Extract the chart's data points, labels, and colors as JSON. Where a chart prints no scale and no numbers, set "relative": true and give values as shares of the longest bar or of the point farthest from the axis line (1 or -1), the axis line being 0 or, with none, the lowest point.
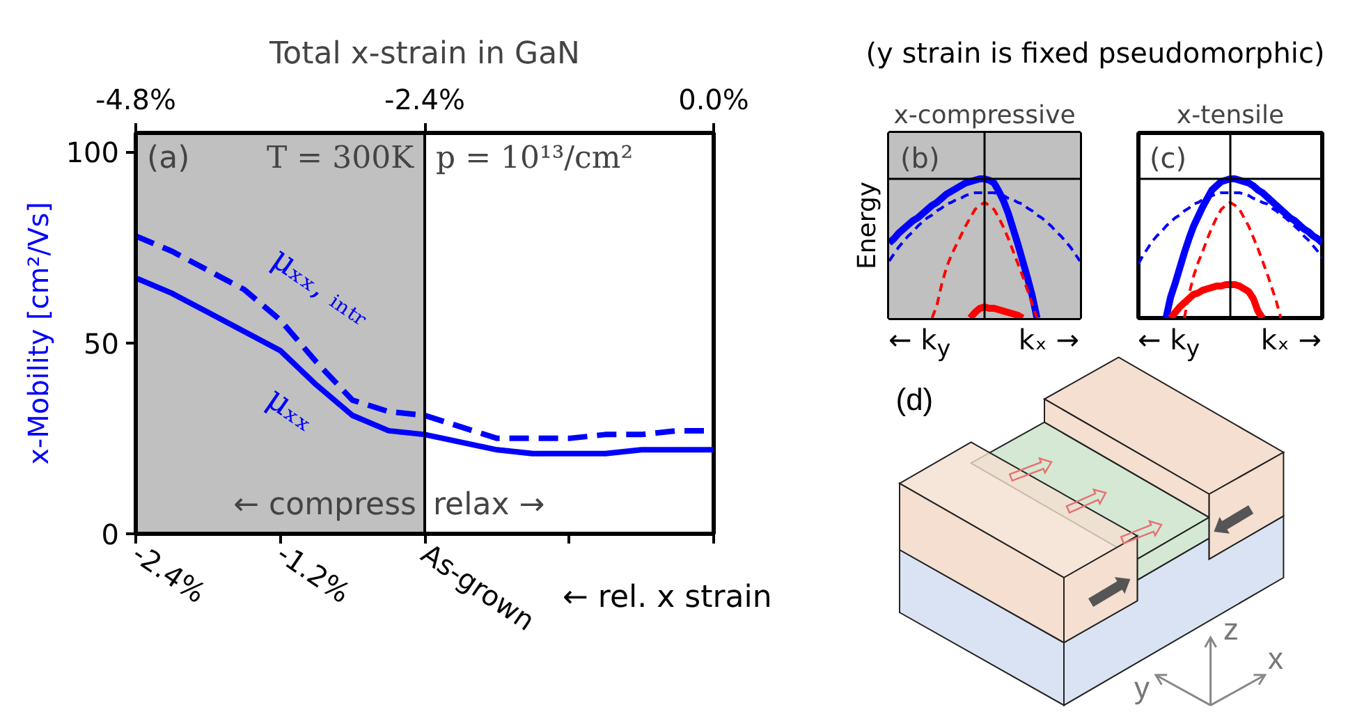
{
  "chart_data": [
    {
      "type": "line",
      "x2label": "Total x-strain in GaN",
      "xlabel": "← rel. x strain",
      "ylabel": "x-Mobility [cm²/Vs]",
      "x": [
        -2.4,
        -2.1,
        -1.8,
        -1.5,
        -1.2,
        -0.9,
        -0.6,
        -0.3,
        0,
        0.3,
        0.6,
        0.9,
        1.2,
        1.5,
        1.8,
        2.1,
        2.4
      ],
      "series": [
        {
          "name": "μₓₓ",
          "color": "#0000ff",
          "line_style": "solid",
          "values": [
            67,
            63,
            58,
            53,
            48,
            39,
            31,
            27,
            26,
            24,
            22,
            21,
            21,
            21,
            22,
            22,
            22
          ]
        },
        {
          "name": "μₓₓ, ᵢₙₜᵣ",
          "color": "#0000ff",
          "line_style": "dashed",
          "values": [
            78,
            74,
            69,
            64,
            56,
            45,
            35,
            32,
            31,
            28,
            25,
            25,
            25,
            26,
            26,
            27,
            27
          ]
        }
      ],
      "xlim": [
        -2.4,
        2.4
      ],
      "xticks": [
        {
          "value": -2.4,
          "label": "-2.4%"
        },
        {
          "value": -1.2,
          "label": "-1.2%"
        },
        {
          "value": 0,
          "label": "As-grown"
        },
        {
          "value": 1.2,
          "label": null
        },
        {
          "value": 2.4,
          "label": null
        }
      ],
      "x2lim": [
        -4.8,
        0
      ],
      "x2ticks": [
        {
          "value": -4.8,
          "label": "-4.8%"
        },
        {
          "value": -2.4,
          "label": "-2.4%"
        },
        {
          "value": 0,
          "label": "0.0%"
        }
      ],
      "ylim": [
        0,
        105
      ],
      "yticks": [
        0,
        50,
        100
      ],
      "bands": [
        {
          "axis": "x",
          "from": -2.4,
          "to": 0,
          "color": "#c0c0c0",
          "label": "← compress"
        }
      ],
      "ref_lines": [
        {
          "axis": "x",
          "value": 0,
          "color": "#000000",
          "label": "relax →"
        }
      ],
      "annotations": [
        "(a)",
        "T = 300K",
        "p = 10¹³/cm²"
      ]
    },
    {
      "type": "line",
      "title": "x-compressive",
      "subtitle": "(y strain is fixed pseudomorphic)",
      "ylabel": "Energy",
      "xlabel": "← k$_{y}$  kₓ →",
      "relative": true,
      "categories": [
        null,
        null,
        null,
        null,
        null,
        null,
        null,
        null,
        null,
        null,
        null,
        null,
        null,
        null,
        null,
        null,
        null,
        null,
        null,
        null,
        null,
        null,
        null,
        null,
        null,
        null,
        null,
        null,
        null,
        null,
        null,
        null,
        null,
        null,
        null,
        null,
        null,
        null,
        null,
        null,
        null
      ],
      "series": [
        {
          "color": "#0000ff",
          "line_style": "solid",
          "values": [
            -0.46,
            -0.43,
            -0.39,
            -0.36,
            -0.33,
            -0.3,
            -0.28,
            -0.25,
            -0.22,
            -0.19,
            -0.17,
            -0.14,
            -0.11,
            -0.09,
            -0.07,
            -0.05,
            -0.03,
            -0.02,
            -0.01,
            0,
            0,
            -0.01,
            -0.03,
            -0.09,
            -0.16,
            -0.25,
            -0.36,
            -0.47,
            -0.59,
            -0.71,
            -0.84,
            -1,
            null,
            null,
            null,
            null,
            null,
            null,
            null,
            null,
            null
          ]
        },
        {
          "color": "#0000ff",
          "line_style": "dashed",
          "values": [
            -0.59,
            -0.54,
            -0.49,
            -0.45,
            -0.41,
            -0.38,
            -0.34,
            -0.31,
            -0.28,
            -0.26,
            -0.23,
            -0.21,
            -0.18,
            -0.17,
            -0.15,
            -0.14,
            -0.12,
            -0.11,
            -0.1,
            -0.1,
            -0.1,
            -0.1,
            -0.1,
            -0.11,
            -0.12,
            -0.14,
            -0.15,
            -0.17,
            -0.18,
            -0.21,
            -0.23,
            -0.26,
            -0.28,
            -0.31,
            -0.34,
            -0.38,
            -0.41,
            -0.45,
            -0.49,
            -0.54,
            -0.59
          ]
        },
        {
          "color": "#ff0000",
          "line_style": "dashed",
          "values": [
            null,
            null,
            null,
            null,
            null,
            null,
            null,
            null,
            null,
            -1,
            -0.91,
            -0.76,
            -0.64,
            -0.55,
            -0.48,
            -0.41,
            -0.34,
            -0.28,
            -0.22,
            -0.19,
            -0.17,
            -0.19,
            -0.22,
            -0.28,
            -0.35,
            -0.43,
            -0.52,
            -0.61,
            -0.7,
            -0.8,
            -0.9,
            -1,
            null,
            null,
            null,
            null,
            null,
            null,
            null,
            null,
            null
          ]
        },
        {
          "color": "#ff0000",
          "line_style": "solid",
          "values": [
            null,
            null,
            null,
            null,
            null,
            null,
            null,
            null,
            null,
            null,
            null,
            null,
            null,
            null,
            null,
            null,
            null,
            -1,
            -0.96,
            -0.93,
            -0.92,
            -0.93,
            -0.93,
            -0.94,
            -0.95,
            -0.96,
            -0.97,
            -0.98,
            -1,
            null,
            null,
            null,
            null,
            null,
            null,
            null,
            null,
            null,
            null,
            null,
            null
          ]
        }
      ],
      "bands": [
        {
          "axis": "y",
          "from": -1,
          "to": 0.33,
          "color": "#c0c0c0"
        }
      ],
      "annotations": [
        "(b)"
      ]
    },
    {
      "type": "line",
      "title": "x-tensile",
      "xlabel": "← k$_{y}$  kₓ →",
      "relative": true,
      "categories": [
        null,
        null,
        null,
        null,
        null,
        null,
        null,
        null,
        null,
        null,
        null,
        null,
        null,
        null,
        null,
        null,
        null,
        null,
        null,
        null,
        null,
        null,
        null,
        null,
        null,
        null,
        null,
        null,
        null,
        null,
        null,
        null,
        null,
        null,
        null,
        null,
        null,
        null,
        null,
        null,
        null
      ],
      "series": [
        {
          "color": "#0000ff",
          "line_style": "solid",
          "values": [
            null,
            null,
            null,
            null,
            null,
            null,
            -1,
            -0.85,
            -0.75,
            -0.64,
            -0.53,
            -0.43,
            -0.34,
            -0.27,
            -0.2,
            -0.14,
            -0.08,
            -0.05,
            -0.02,
            -0.01,
            0,
            0,
            -0.01,
            -0.02,
            -0.03,
            -0.05,
            -0.08,
            -0.1,
            -0.13,
            -0.16,
            -0.19,
            -0.22,
            -0.25,
            -0.28,
            -0.3,
            -0.33,
            -0.36,
            -0.38,
            -0.41,
            -0.43,
            -0.46
          ]
        },
        {
          "color": "#0000ff",
          "line_style": "dashed",
          "values": [
            -0.61,
            -0.55,
            -0.5,
            -0.45,
            -0.41,
            -0.38,
            -0.34,
            -0.31,
            -0.28,
            -0.26,
            -0.23,
            -0.21,
            -0.18,
            -0.17,
            -0.15,
            -0.14,
            -0.12,
            -0.11,
            -0.1,
            -0.1,
            -0.1,
            -0.1,
            -0.1,
            -0.11,
            -0.12,
            -0.14,
            -0.15,
            -0.17,
            -0.18,
            -0.21,
            -0.23,
            -0.26,
            -0.28,
            -0.31,
            -0.34,
            -0.37,
            -0.41,
            -0.44,
            -0.48,
            -0.52,
            -0.57
          ]
        },
        {
          "color": "#ff0000",
          "line_style": "dashed",
          "values": [
            null,
            null,
            null,
            null,
            null,
            null,
            null,
            null,
            null,
            null,
            -1,
            -0.83,
            -0.7,
            -0.6,
            -0.52,
            -0.43,
            -0.35,
            -0.28,
            -0.22,
            -0.19,
            -0.17,
            -0.19,
            -0.22,
            -0.28,
            -0.34,
            -0.42,
            -0.5,
            -0.59,
            -0.68,
            -0.78,
            -0.88,
            -1,
            null,
            null,
            null,
            null,
            null,
            null,
            null,
            null,
            null
          ]
        },
        {
          "color": "#ff0000",
          "line_style": "solid",
          "values": [
            null,
            null,
            null,
            null,
            null,
            null,
            null,
            -1,
            -0.96,
            -0.92,
            -0.89,
            -0.86,
            -0.83,
            -0.82,
            -0.8,
            -0.79,
            -0.78,
            -0.77,
            -0.77,
            -0.76,
            -0.76,
            -0.76,
            -0.77,
            -0.79,
            -0.81,
            -0.86,
            -0.95,
            -1,
            null,
            null,
            null,
            null,
            null,
            null,
            null,
            null,
            null,
            null,
            null,
            null,
            null
          ]
        }
      ],
      "annotations": [
        "(c)"
      ]
    },
    {
      "type": "other",
      "annotations": [
        "(d)",
        "z",
        "x",
        "y"
      ]
    }
  ]
}
